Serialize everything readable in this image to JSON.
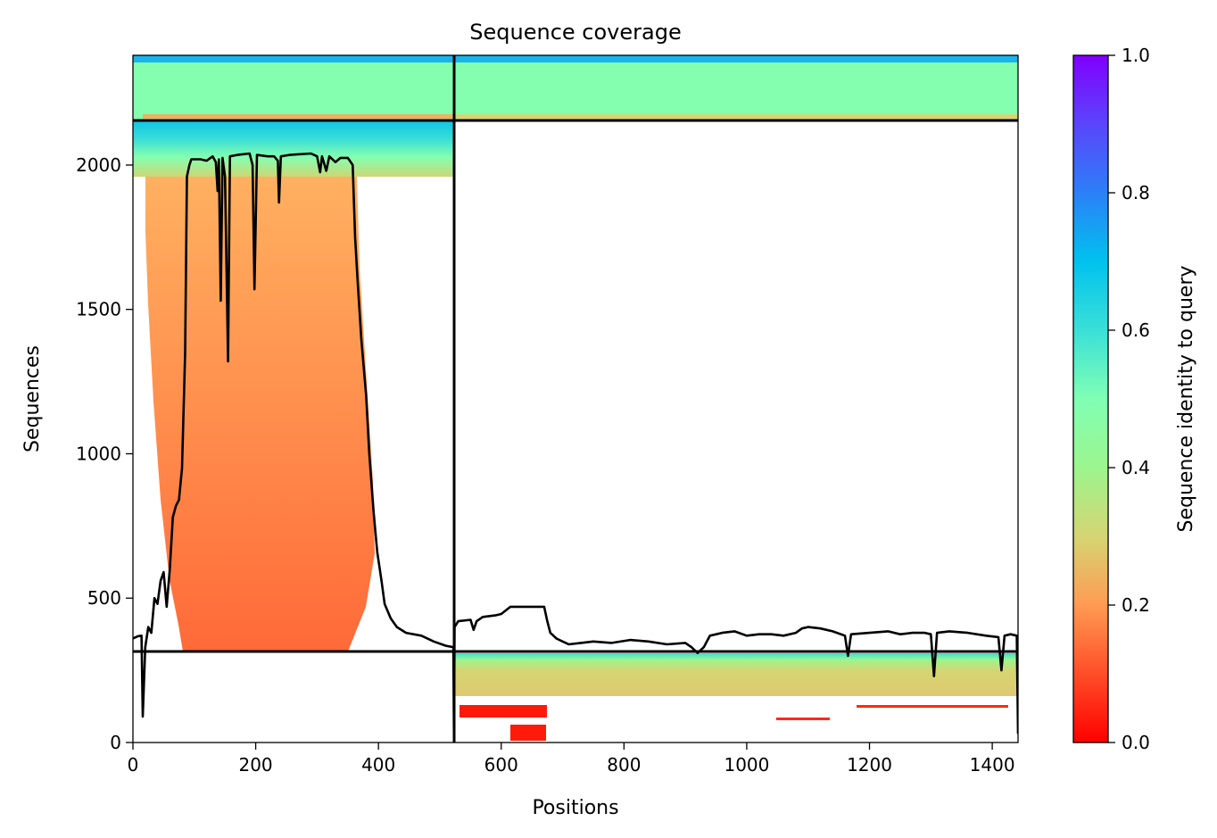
{
  "chart_data": {
    "type": "heatmap",
    "title": "Sequence coverage",
    "xlabel": "Positions",
    "ylabel": "Sequences",
    "xlim": [
      0,
      1442
    ],
    "ylim": [
      0,
      2380
    ],
    "x_ticks": [
      0,
      200,
      400,
      600,
      800,
      1000,
      1200,
      1400
    ],
    "y_ticks": [
      0,
      500,
      1000,
      1500,
      2000
    ],
    "x_tick_labels": [
      "0",
      "200",
      "400",
      "600",
      "800",
      "1000",
      "1200",
      "1400"
    ],
    "y_tick_labels": [
      "0",
      "500",
      "1000",
      "1500",
      "2000"
    ],
    "colorbar": {
      "label": "Sequence identity to query",
      "range": [
        0.0,
        1.0
      ],
      "colormap": "rainbow_r",
      "ticks": [
        0.0,
        0.2,
        0.4,
        0.6,
        0.8,
        1.0
      ],
      "tick_labels": [
        "0.0",
        "0.2",
        "0.4",
        "0.6",
        "0.8",
        "1.0"
      ]
    },
    "chain_break_position": 523,
    "block_boundaries_rows": [
      315,
      2140
    ],
    "coverage_line": {
      "color": "#000000",
      "points": [
        [
          0,
          360
        ],
        [
          8,
          368
        ],
        [
          14,
          370
        ],
        [
          16,
          90
        ],
        [
          20,
          330
        ],
        [
          25,
          400
        ],
        [
          30,
          380
        ],
        [
          35,
          500
        ],
        [
          40,
          480
        ],
        [
          45,
          560
        ],
        [
          50,
          590
        ],
        [
          55,
          470
        ],
        [
          60,
          600
        ],
        [
          65,
          780
        ],
        [
          70,
          820
        ],
        [
          75,
          840
        ],
        [
          80,
          950
        ],
        [
          85,
          1350
        ],
        [
          88,
          1960
        ],
        [
          92,
          2000
        ],
        [
          95,
          2020
        ],
        [
          110,
          2020
        ],
        [
          120,
          2015
        ],
        [
          130,
          2030
        ],
        [
          135,
          2010
        ],
        [
          138,
          1910
        ],
        [
          140,
          2020
        ],
        [
          143,
          1530
        ],
        [
          146,
          2025
        ],
        [
          150,
          1960
        ],
        [
          155,
          1320
        ],
        [
          158,
          2030
        ],
        [
          170,
          2035
        ],
        [
          190,
          2040
        ],
        [
          195,
          2000
        ],
        [
          198,
          1570
        ],
        [
          202,
          2035
        ],
        [
          220,
          2030
        ],
        [
          230,
          2030
        ],
        [
          236,
          2015
        ],
        [
          238,
          1870
        ],
        [
          241,
          2030
        ],
        [
          255,
          2035
        ],
        [
          290,
          2040
        ],
        [
          300,
          2030
        ],
        [
          305,
          1975
        ],
        [
          308,
          2030
        ],
        [
          315,
          1980
        ],
        [
          320,
          2030
        ],
        [
          330,
          2010
        ],
        [
          338,
          2025
        ],
        [
          350,
          2025
        ],
        [
          358,
          2000
        ],
        [
          362,
          1750
        ],
        [
          366,
          1600
        ],
        [
          372,
          1400
        ],
        [
          380,
          1200
        ],
        [
          385,
          1000
        ],
        [
          392,
          800
        ],
        [
          398,
          660
        ],
        [
          405,
          560
        ],
        [
          410,
          480
        ],
        [
          420,
          430
        ],
        [
          430,
          400
        ],
        [
          445,
          380
        ],
        [
          470,
          370
        ],
        [
          490,
          350
        ],
        [
          510,
          335
        ],
        [
          522,
          330
        ],
        [
          523,
          30
        ],
        [
          524,
          400
        ],
        [
          530,
          420
        ],
        [
          550,
          425
        ],
        [
          555,
          390
        ],
        [
          560,
          420
        ],
        [
          570,
          435
        ],
        [
          590,
          440
        ],
        [
          600,
          445
        ],
        [
          615,
          470
        ],
        [
          640,
          470
        ],
        [
          660,
          470
        ],
        [
          670,
          470
        ],
        [
          675,
          420
        ],
        [
          680,
          380
        ],
        [
          690,
          360
        ],
        [
          700,
          350
        ],
        [
          710,
          340
        ],
        [
          730,
          345
        ],
        [
          750,
          350
        ],
        [
          780,
          345
        ],
        [
          810,
          355
        ],
        [
          840,
          350
        ],
        [
          870,
          340
        ],
        [
          900,
          345
        ],
        [
          910,
          330
        ],
        [
          920,
          310
        ],
        [
          930,
          330
        ],
        [
          940,
          370
        ],
        [
          960,
          380
        ],
        [
          980,
          385
        ],
        [
          1000,
          370
        ],
        [
          1020,
          375
        ],
        [
          1040,
          375
        ],
        [
          1060,
          370
        ],
        [
          1080,
          380
        ],
        [
          1090,
          395
        ],
        [
          1100,
          400
        ],
        [
          1120,
          395
        ],
        [
          1140,
          385
        ],
        [
          1160,
          370
        ],
        [
          1165,
          300
        ],
        [
          1170,
          375
        ],
        [
          1200,
          380
        ],
        [
          1230,
          385
        ],
        [
          1250,
          375
        ],
        [
          1270,
          380
        ],
        [
          1290,
          380
        ],
        [
          1300,
          375
        ],
        [
          1305,
          230
        ],
        [
          1310,
          380
        ],
        [
          1330,
          385
        ],
        [
          1360,
          380
        ],
        [
          1390,
          370
        ],
        [
          1410,
          365
        ],
        [
          1415,
          250
        ],
        [
          1420,
          370
        ],
        [
          1430,
          375
        ],
        [
          1440,
          370
        ],
        [
          1442,
          30
        ]
      ]
    }
  }
}
